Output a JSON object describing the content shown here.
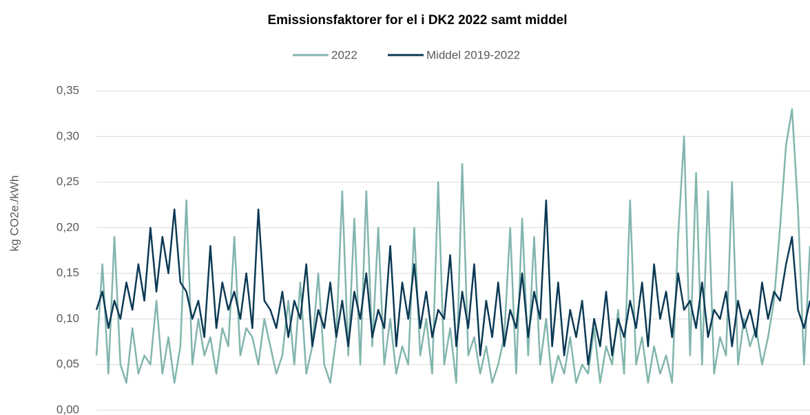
{
  "chart_data": {
    "type": "line",
    "title": "Emissionsfaktorer for el i DK2 2022 samt middel",
    "ylabel": "kg CO2e./kWh",
    "ylim": [
      0,
      0.35
    ],
    "yticks": [
      {
        "value": 0,
        "label": "0,00"
      },
      {
        "value": 0.05,
        "label": "0,05"
      },
      {
        "value": 0.1,
        "label": "0,10"
      },
      {
        "value": 0.15,
        "label": "0,15"
      },
      {
        "value": 0.2,
        "label": "0,20"
      },
      {
        "value": 0.25,
        "label": "0,25"
      },
      {
        "value": 0.3,
        "label": "0,30"
      },
      {
        "value": 0.35,
        "label": "0,35"
      }
    ],
    "grid": true,
    "legend": "top",
    "series": [
      {
        "name": "2022",
        "color": "#82b5ad",
        "values": [
          0.06,
          0.16,
          0.04,
          0.19,
          0.05,
          0.03,
          0.09,
          0.04,
          0.06,
          0.05,
          0.12,
          0.04,
          0.08,
          0.03,
          0.07,
          0.23,
          0.05,
          0.1,
          0.06,
          0.08,
          0.04,
          0.09,
          0.07,
          0.19,
          0.06,
          0.09,
          0.08,
          0.05,
          0.1,
          0.07,
          0.04,
          0.06,
          0.12,
          0.05,
          0.14,
          0.04,
          0.07,
          0.15,
          0.05,
          0.03,
          0.08,
          0.24,
          0.06,
          0.21,
          0.05,
          0.24,
          0.07,
          0.2,
          0.05,
          0.1,
          0.04,
          0.07,
          0.05,
          0.2,
          0.06,
          0.1,
          0.04,
          0.25,
          0.05,
          0.09,
          0.03,
          0.27,
          0.06,
          0.08,
          0.04,
          0.07,
          0.03,
          0.05,
          0.08,
          0.2,
          0.04,
          0.21,
          0.06,
          0.19,
          0.05,
          0.1,
          0.03,
          0.06,
          0.04,
          0.08,
          0.03,
          0.05,
          0.04,
          0.09,
          0.03,
          0.07,
          0.05,
          0.11,
          0.04,
          0.23,
          0.05,
          0.08,
          0.03,
          0.07,
          0.04,
          0.06,
          0.03,
          0.19,
          0.3,
          0.06,
          0.26,
          0.05,
          0.24,
          0.04,
          0.08,
          0.06,
          0.25,
          0.05,
          0.1,
          0.07,
          0.09,
          0.05,
          0.08,
          0.12,
          0.2,
          0.29,
          0.33,
          0.22,
          0.05,
          0.18
        ]
      },
      {
        "name": "Middel 2019-2022",
        "color": "#0b3954",
        "values": [
          0.11,
          0.13,
          0.09,
          0.12,
          0.1,
          0.14,
          0.11,
          0.16,
          0.12,
          0.2,
          0.13,
          0.19,
          0.15,
          0.22,
          0.14,
          0.13,
          0.1,
          0.12,
          0.08,
          0.18,
          0.09,
          0.14,
          0.11,
          0.13,
          0.1,
          0.15,
          0.09,
          0.22,
          0.12,
          0.11,
          0.09,
          0.13,
          0.08,
          0.12,
          0.1,
          0.16,
          0.07,
          0.11,
          0.09,
          0.14,
          0.08,
          0.12,
          0.07,
          0.13,
          0.1,
          0.15,
          0.08,
          0.11,
          0.09,
          0.18,
          0.07,
          0.14,
          0.1,
          0.16,
          0.09,
          0.13,
          0.08,
          0.11,
          0.1,
          0.17,
          0.07,
          0.13,
          0.09,
          0.16,
          0.06,
          0.12,
          0.08,
          0.14,
          0.07,
          0.11,
          0.09,
          0.15,
          0.08,
          0.13,
          0.1,
          0.23,
          0.07,
          0.14,
          0.06,
          0.11,
          0.08,
          0.12,
          0.05,
          0.1,
          0.07,
          0.13,
          0.06,
          0.1,
          0.08,
          0.12,
          0.09,
          0.14,
          0.07,
          0.16,
          0.1,
          0.13,
          0.08,
          0.15,
          0.11,
          0.12,
          0.09,
          0.14,
          0.08,
          0.11,
          0.1,
          0.13,
          0.07,
          0.12,
          0.09,
          0.11,
          0.08,
          0.14,
          0.1,
          0.13,
          0.12,
          0.16,
          0.19,
          0.11,
          0.09,
          0.12
        ]
      }
    ]
  }
}
